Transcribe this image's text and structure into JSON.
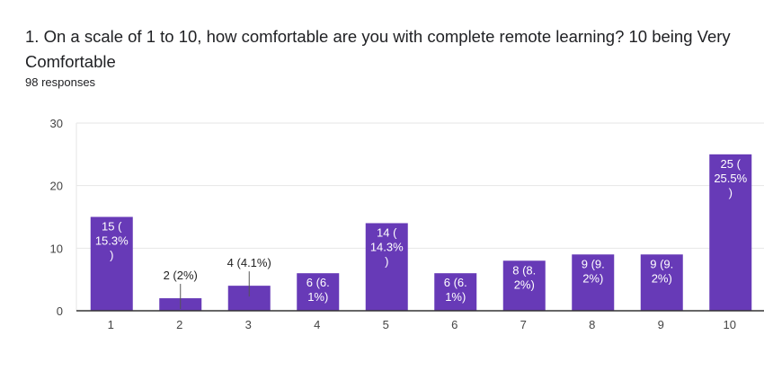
{
  "question": {
    "title_line1": "1. On a scale of 1 to 10, how comfortable are you with complete remote learning? 10 being Very",
    "title_line2": "Comfortable",
    "responses": "98 responses"
  },
  "colors": {
    "bar": "#673ab7",
    "grid": "#e6e6e6",
    "axis": "#333333",
    "label_inside": "#ffffff",
    "label_outside": "#222222"
  },
  "chart_data": {
    "type": "bar",
    "categories": [
      "1",
      "2",
      "3",
      "4",
      "5",
      "6",
      "7",
      "8",
      "9",
      "10"
    ],
    "values": [
      15,
      2,
      4,
      6,
      14,
      6,
      8,
      9,
      9,
      25
    ],
    "data_labels": [
      [
        "15 (",
        "15.3%",
        ")"
      ],
      [
        "2 (2%)"
      ],
      [
        "4 (4.1%)"
      ],
      [
        "6 (6.",
        "1%)"
      ],
      [
        "14 (",
        "14.3%",
        ")"
      ],
      [
        "6 (6.",
        "1%)"
      ],
      [
        "8 (8.",
        "2%)"
      ],
      [
        "9 (9.",
        "2%)"
      ],
      [
        "9 (9.",
        "2%)"
      ],
      [
        "25 (",
        "25.5%",
        ")"
      ]
    ],
    "y_ticks": [
      0,
      10,
      20,
      30
    ],
    "ylim": [
      0,
      30
    ],
    "grid": true,
    "legend": "none"
  }
}
